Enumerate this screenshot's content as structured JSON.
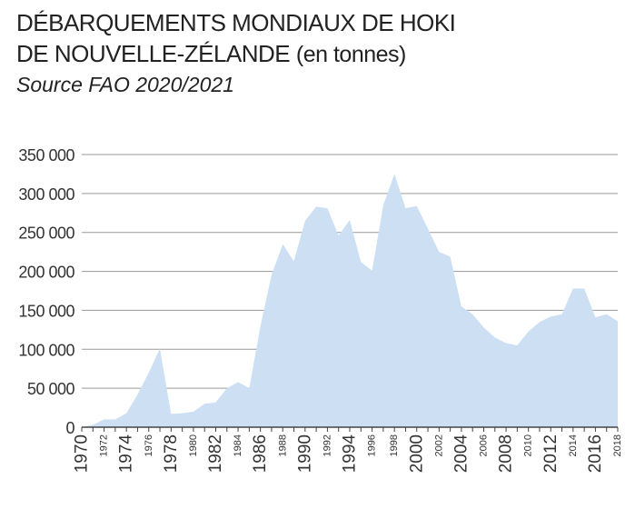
{
  "header": {
    "title_line1": "DÉBARQUEMENTS MONDIAUX DE HOKI",
    "title_line2": "DE NOUVELLE-ZÉLANDE",
    "unit": "(en tonnes)",
    "source": "Source FAO 2020/2021"
  },
  "chart_data": {
    "type": "area",
    "title": "DÉBARQUEMENTS MONDIAUX DE HOKI DE NOUVELLE-ZÉLANDE (en tonnes)",
    "ylim": [
      0,
      350000
    ],
    "xlim": [
      1970,
      2018
    ],
    "grid": true,
    "fill_color": "#cde0f3",
    "y_ticks": [
      {
        "value": 0,
        "label": "0"
      },
      {
        "value": 50000,
        "label": "50 000"
      },
      {
        "value": 100000,
        "label": "100 000"
      },
      {
        "value": 150000,
        "label": "150 000"
      },
      {
        "value": 200000,
        "label": "200 000"
      },
      {
        "value": 250000,
        "label": "250 000"
      },
      {
        "value": 300000,
        "label": "300 000"
      },
      {
        "value": 350000,
        "label": "350 000"
      }
    ],
    "x_ticks": [
      {
        "value": 1970,
        "label": "1970",
        "major": true
      },
      {
        "value": 1972,
        "label": "1972",
        "major": false
      },
      {
        "value": 1974,
        "label": "1974",
        "major": true
      },
      {
        "value": 1976,
        "label": "1976",
        "major": false
      },
      {
        "value": 1978,
        "label": "1978",
        "major": true
      },
      {
        "value": 1980,
        "label": "1980",
        "major": false
      },
      {
        "value": 1982,
        "label": "1982",
        "major": true
      },
      {
        "value": 1984,
        "label": "1984",
        "major": false
      },
      {
        "value": 1986,
        "label": "1986",
        "major": true
      },
      {
        "value": 1988,
        "label": "1988",
        "major": false
      },
      {
        "value": 1990,
        "label": "1990",
        "major": true
      },
      {
        "value": 1992,
        "label": "1992",
        "major": false
      },
      {
        "value": 1994,
        "label": "1994",
        "major": true
      },
      {
        "value": 1996,
        "label": "1996",
        "major": false
      },
      {
        "value": 1998,
        "label": "1998",
        "major": false
      },
      {
        "value": 2000,
        "label": "2000",
        "major": true
      },
      {
        "value": 2002,
        "label": "2002",
        "major": false
      },
      {
        "value": 2004,
        "label": "2004",
        "major": true
      },
      {
        "value": 2006,
        "label": "2006",
        "major": false
      },
      {
        "value": 2008,
        "label": "2008",
        "major": true
      },
      {
        "value": 2010,
        "label": "2010",
        "major": false
      },
      {
        "value": 2012,
        "label": "2012",
        "major": true
      },
      {
        "value": 2014,
        "label": "2014",
        "major": false
      },
      {
        "value": 2016,
        "label": "2016",
        "major": true
      },
      {
        "value": 2018,
        "label": "2018",
        "major": false
      }
    ],
    "x": [
      1970,
      1971,
      1972,
      1973,
      1974,
      1975,
      1976,
      1977,
      1978,
      1979,
      1980,
      1981,
      1982,
      1983,
      1984,
      1985,
      1986,
      1987,
      1988,
      1989,
      1990,
      1991,
      1992,
      1993,
      1994,
      1995,
      1996,
      1997,
      1998,
      1999,
      2000,
      2001,
      2002,
      2003,
      2004,
      2005,
      2006,
      2007,
      2008,
      2009,
      2010,
      2011,
      2012,
      2013,
      2014,
      2015,
      2016,
      2017,
      2018
    ],
    "values": [
      0,
      3000,
      10000,
      10000,
      18000,
      42000,
      70000,
      101000,
      17000,
      18000,
      20000,
      30000,
      32000,
      50000,
      58000,
      50000,
      130000,
      196000,
      235000,
      213000,
      265000,
      283000,
      281000,
      246000,
      266000,
      212000,
      201000,
      285000,
      325000,
      281000,
      284000,
      255000,
      225000,
      219000,
      155000,
      145000,
      128000,
      115000,
      108000,
      105000,
      123000,
      135000,
      142000,
      145000,
      178000,
      178000,
      141000,
      145000,
      136000
    ]
  }
}
